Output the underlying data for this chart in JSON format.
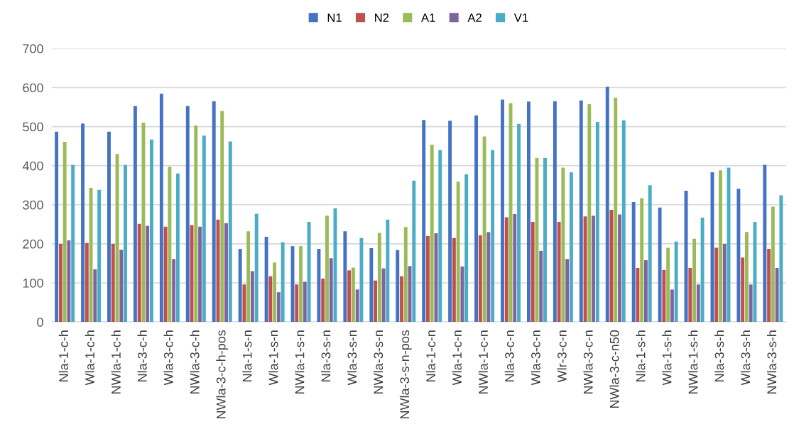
{
  "chart_data": {
    "type": "bar",
    "categories": [
      "Nla-1-c-h",
      "Wla-1-c-h",
      "NWla-1-c-h",
      "Nla-3-c-h",
      "Wla-3-c-h",
      "NWla-3-c-h",
      "NWla-3-c-h-pos",
      "Nla-1-s-n",
      "Wla-1-s-n",
      "NWla-1-s-n",
      "Nla-3-s-n",
      "Wla-3-s-n",
      "NWla-3-s-n",
      "NWla-3-s-n-pos",
      "Nla-1-c-n",
      "Wla-1-c-n",
      "NWla-1-c-n",
      "Nla-3-c-n",
      "Wla-3-c-n",
      "Wlr-3-c-n",
      "NWla-3-c-n",
      "NWla-3-c-n50",
      "Nla-1-s-h",
      "Wla-1-s-h",
      "NWla-1-s-h",
      "Nla-3-s-h",
      "Wla-3-s-h",
      "NWla-3-s-h"
    ],
    "series": [
      {
        "name": "N1",
        "color": "#4472c4",
        "values": [
          487,
          508,
          487,
          553,
          584,
          553,
          565,
          187,
          218,
          194,
          187,
          232,
          189,
          184,
          517,
          515,
          529,
          569,
          564,
          565,
          567,
          602,
          307,
          293,
          336,
          383,
          341,
          402
        ]
      },
      {
        "name": "N2",
        "color": "#c0504d",
        "values": [
          200,
          202,
          200,
          251,
          244,
          248,
          262,
          96,
          117,
          96,
          111,
          132,
          106,
          117,
          220,
          215,
          222,
          268,
          256,
          256,
          270,
          287,
          138,
          133,
          138,
          190,
          165,
          187
        ]
      },
      {
        "name": "A1",
        "color": "#9bbb59",
        "values": [
          461,
          343,
          430,
          510,
          397,
          503,
          540,
          232,
          152,
          194,
          272,
          139,
          228,
          243,
          454,
          359,
          475,
          560,
          420,
          395,
          558,
          574,
          317,
          190,
          213,
          388,
          230,
          295
        ]
      },
      {
        "name": "A2",
        "color": "#8064a2",
        "values": [
          209,
          135,
          185,
          246,
          161,
          244,
          253,
          130,
          76,
          103,
          163,
          83,
          137,
          143,
          227,
          142,
          230,
          276,
          182,
          161,
          272,
          275,
          158,
          83,
          96,
          200,
          96,
          138
        ]
      },
      {
        "name": "V1",
        "color": "#4bacc6",
        "values": [
          402,
          338,
          402,
          467,
          380,
          477,
          462,
          277,
          204,
          256,
          291,
          215,
          262,
          362,
          440,
          378,
          440,
          507,
          420,
          383,
          512,
          516,
          350,
          206,
          267,
          395,
          256,
          324
        ]
      }
    ],
    "ylim": [
      0,
      700
    ],
    "yticks": [
      0,
      100,
      200,
      300,
      400,
      500,
      600,
      700
    ],
    "grid": "y",
    "legend": "top"
  }
}
